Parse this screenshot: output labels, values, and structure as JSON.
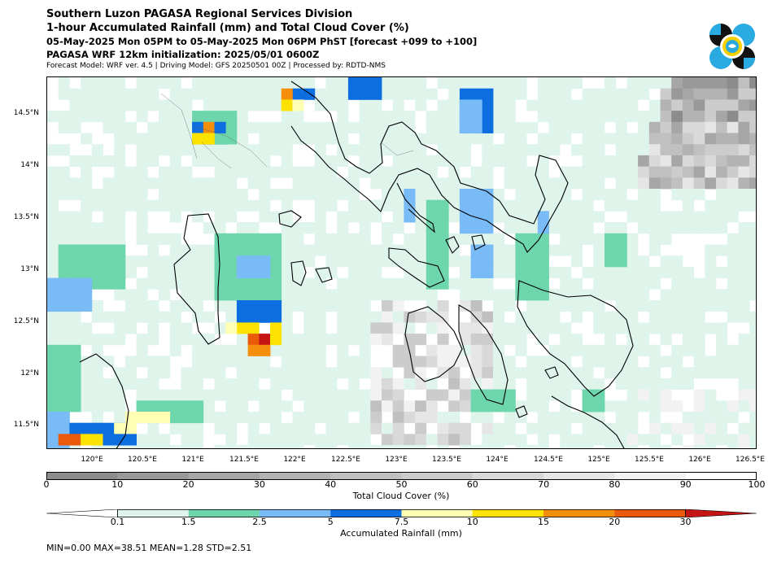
{
  "titles": {
    "line1": "Southern Luzon PAGASA Regional Services Division",
    "line2": "1-hour Accumulated Rainfall (mm) and Total Cloud Cover (%)",
    "line3": "05-May-2025 Mon 05PM to 05-May-2025 Mon 06PM PhST [forecast +099 to +100]",
    "line4": "PAGASA WRF 12km initialization: 2025/05/01 0600Z",
    "line5": "Forecast Model: WRF ver. 4.5 | Driving Model: GFS 20250501 00Z | Processed by: RDTD-NMS"
  },
  "logo": {
    "name": "pagasa-logo",
    "colors": [
      "#111111",
      "#29abe2",
      "#f4d000"
    ]
  },
  "map": {
    "lat_labels": [
      "14.5°N",
      "14°N",
      "13.5°N",
      "13°N",
      "12.5°N",
      "12°N",
      "11.5°N"
    ],
    "lon_labels": [
      "120°E",
      "120.5°E",
      "121°E",
      "121.5°E",
      "122°E",
      "122.5°E",
      "123°E",
      "123.5°E",
      "124°E",
      "124.5°E",
      "125°E",
      "125.5°E",
      "126°E",
      "126.5°E"
    ],
    "coastline_color": "#000000",
    "grid_color": "#9a9a9a"
  },
  "cloud_colorbar": {
    "label": "Total Cloud Cover (%)",
    "ticks": [
      "0",
      "10",
      "20",
      "30",
      "40",
      "50",
      "60",
      "70",
      "80",
      "90",
      "100"
    ],
    "colors": [
      "#8c8c8c",
      "#999999",
      "#a6a6a6",
      "#b3b3b3",
      "#c0c0c0",
      "#cccccc",
      "#d9d9d9",
      "#e6e6e6",
      "#f2f2f2",
      "#ffffff"
    ]
  },
  "rain_colorbar": {
    "label": "Accumulated Rainfall (mm)",
    "ticks": [
      "0.1",
      "1.5",
      "2.5",
      "5",
      "7.5",
      "10",
      "15",
      "20",
      "30"
    ],
    "colors": [
      "#ffffff",
      "#dff5ec",
      "#6ed6ad",
      "#78bbf7",
      "#0d6ee0",
      "#ffffb4",
      "#fbe200",
      "#f58e0a",
      "#eb5a0a",
      "#c41414"
    ]
  },
  "stats": {
    "text": "MIN=0.00   MAX=38.51   MEAN=1.28   STD=2.51"
  }
}
